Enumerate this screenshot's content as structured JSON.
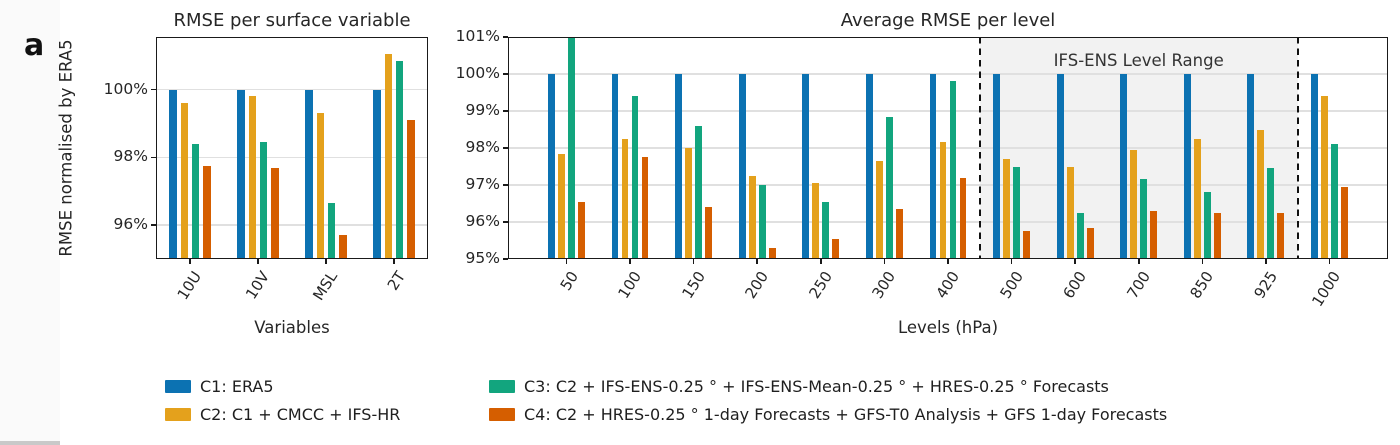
{
  "panel_label": "a",
  "colors": {
    "c1_blue": "#0c72b2",
    "c2_orange": "#e4a11c",
    "c3_green": "#12a57e",
    "c4_vermillion": "#d55e00",
    "gridline": "#e0e0e0",
    "shade": "#f2f2f2",
    "spine": "#1a1a1a"
  },
  "legend": {
    "items": [
      {
        "id": "C1",
        "label": "C1: ERA5",
        "color": "#0c72b2"
      },
      {
        "id": "C2",
        "label": "C2: C1 + CMCC + IFS-HR",
        "color": "#e4a11c"
      },
      {
        "id": "C3",
        "label": "C3: C2 + IFS-ENS-0.25 ° + IFS-ENS-Mean-0.25 ° + HRES-0.25 ° Forecasts",
        "color": "#12a57e"
      },
      {
        "id": "C4",
        "label": "C4: C2 + HRES-0.25 ° 1-day Forecasts + GFS-T0 Analysis + GFS 1-day Forecasts",
        "color": "#d55e00"
      }
    ]
  },
  "chart_data": [
    {
      "id": "surface",
      "type": "bar",
      "title": "RMSE per surface variable",
      "xlabel": "Variables",
      "ylabel": "RMSE normalised by ERA5",
      "categories": [
        "10U",
        "10V",
        "MSL",
        "2T"
      ],
      "ylim": [
        95,
        101.55
      ],
      "grid": true,
      "yticks": [
        {
          "value": 96,
          "label": "96%"
        },
        {
          "value": 98,
          "label": "98%"
        },
        {
          "value": 100,
          "label": "100%"
        }
      ],
      "series": [
        {
          "name": "C1: ERA5",
          "color": "#0c72b2",
          "values": [
            100,
            100,
            100,
            100
          ]
        },
        {
          "name": "C2: C1 + CMCC + IFS-HR",
          "color": "#e4a11c",
          "values": [
            99.6,
            99.8,
            99.3,
            101.05
          ]
        },
        {
          "name": "C3: C2 + IFS-ENS-0.25 ° + IFS-ENS-Mean-0.25 ° + HRES-0.25 ° Forecasts",
          "color": "#12a57e",
          "values": [
            98.4,
            98.45,
            96.65,
            100.85
          ]
        },
        {
          "name": "C4: C2 + HRES-0.25 ° 1-day Forecasts + GFS-T0 Analysis + GFS 1-day Forecasts",
          "color": "#d55e00",
          "values": [
            97.75,
            97.7,
            95.7,
            99.1
          ]
        }
      ]
    },
    {
      "id": "levels",
      "type": "bar",
      "title": "Average RMSE per level",
      "xlabel": "Levels (hPa)",
      "categories": [
        "50",
        "100",
        "150",
        "200",
        "250",
        "300",
        "400",
        "500",
        "600",
        "700",
        "850",
        "925",
        "1000"
      ],
      "ylim": [
        95,
        101
      ],
      "grid": true,
      "yticks": [
        {
          "value": 95,
          "label": "95%"
        },
        {
          "value": 96,
          "label": "96%"
        },
        {
          "value": 97,
          "label": "97%"
        },
        {
          "value": 98,
          "label": "98%"
        },
        {
          "value": 99,
          "label": "99%"
        },
        {
          "value": 100,
          "label": "100%"
        },
        {
          "value": 101,
          "label": "101%"
        }
      ],
      "shaded_region": {
        "label": "IFS-ENS Level Range",
        "from_category": "500",
        "to_category": "925",
        "start_after_index": 6,
        "end_after_index": 11
      },
      "series": [
        {
          "name": "C1: ERA5",
          "color": "#0c72b2",
          "values": [
            100,
            100,
            100,
            100,
            100,
            100,
            100,
            100,
            100,
            100,
            100,
            100,
            100
          ]
        },
        {
          "name": "C2: C1 + CMCC + IFS-HR",
          "color": "#e4a11c",
          "values": [
            97.85,
            98.25,
            98.0,
            97.25,
            97.05,
            97.65,
            98.15,
            97.7,
            97.5,
            97.95,
            98.25,
            98.5,
            99.4
          ]
        },
        {
          "name": "C3: C2 + IFS-ENS-0.25 ° + IFS-ENS-Mean-0.25 ° + HRES-0.25 ° Forecasts",
          "color": "#12a57e",
          "values": [
            101.3,
            99.4,
            98.6,
            97.0,
            96.55,
            98.85,
            99.8,
            97.5,
            96.25,
            97.15,
            96.8,
            97.45,
            98.1
          ]
        },
        {
          "name": "C4: C2 + HRES-0.25 ° 1-day Forecasts + GFS-T0 Analysis + GFS 1-day Forecasts",
          "color": "#d55e00",
          "values": [
            96.55,
            97.75,
            96.4,
            95.3,
            95.55,
            96.35,
            97.2,
            95.75,
            95.85,
            96.3,
            96.25,
            96.25,
            96.95
          ]
        }
      ]
    }
  ]
}
